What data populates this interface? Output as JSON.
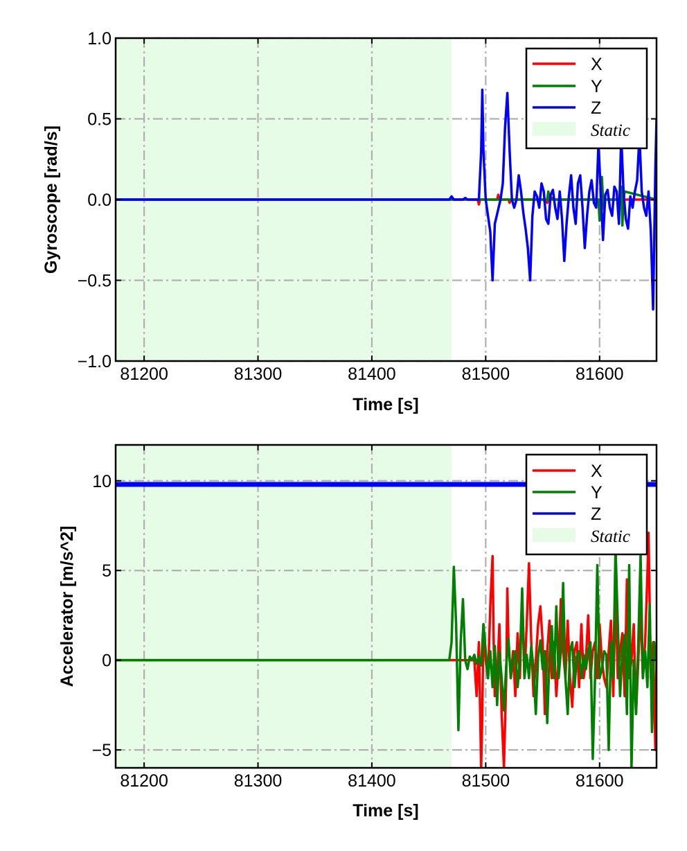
{
  "colors": {
    "x_series": "#ff0000",
    "y_series": "#008000",
    "z_series": "#0000ff",
    "static_region": "#e6fce6",
    "grid": "#b0b0b0",
    "frame": "#000000"
  },
  "chart_data": [
    {
      "type": "line",
      "xlabel": "Time [s]",
      "ylabel": "Gyroscope [rad/s]",
      "xlim": [
        81175,
        81650
      ],
      "ylim": [
        -1.0,
        1.0
      ],
      "xticks": [
        81200,
        81300,
        81400,
        81500,
        81600
      ],
      "xtick_labels": [
        "81200",
        "81300",
        "81400",
        "81500",
        "81600"
      ],
      "yticks": [
        -1.0,
        -0.5,
        0.0,
        0.5,
        1.0
      ],
      "ytick_labels": [
        "−1.0",
        "−0.5",
        "0.0",
        "0.5",
        "1.0"
      ],
      "grid": true,
      "legend_position": "top-right",
      "legend": [
        "X",
        "Y",
        "Z",
        "Static"
      ],
      "static_region": [
        81175,
        81470
      ],
      "series": [
        {
          "name": "X",
          "x": [
            81175,
            81470,
            81493,
            81494,
            81495,
            81500,
            81510,
            81511,
            81512,
            81520,
            81521,
            81522,
            81550,
            81554,
            81555,
            81556,
            81560,
            81650
          ],
          "y": [
            0,
            0,
            0,
            -0.03,
            0,
            0,
            0,
            0.03,
            0,
            0,
            -0.02,
            0,
            0,
            -0.02,
            0,
            0.02,
            0,
            0
          ]
        },
        {
          "name": "Y",
          "x": [
            81175,
            81500,
            81550,
            81554,
            81555,
            81556,
            81558,
            81599,
            81600,
            81601,
            81602,
            81603,
            81604,
            81605,
            81618,
            81619,
            81620,
            81621,
            81622,
            81650
          ],
          "y": [
            0,
            0,
            0,
            0,
            0.05,
            0,
            0,
            0,
            -0.13,
            0,
            0.14,
            0,
            -0.06,
            0,
            0,
            0.08,
            -0.16,
            0,
            0.05,
            0
          ]
        },
        {
          "name": "Z",
          "x": [
            81175,
            81468,
            81470,
            81472,
            81480,
            81482,
            81484,
            81494,
            81496,
            81497,
            81498,
            81500,
            81504,
            81506,
            81508,
            81513,
            81515,
            81517,
            81519,
            81521,
            81523,
            81525,
            81527,
            81529,
            81531,
            81533,
            81535,
            81537,
            81539,
            81541,
            81543,
            81545,
            81547,
            81549,
            81551,
            81553,
            81555,
            81557,
            81559,
            81561,
            81563,
            81565,
            81567,
            81569,
            81571,
            81573,
            81575,
            81577,
            81579,
            81581,
            81583,
            81585,
            81587,
            81589,
            81591,
            81593,
            81595,
            81597,
            81599,
            81601,
            81603,
            81605,
            81607,
            81609,
            81611,
            81613,
            81615,
            81617,
            81619,
            81621,
            81623,
            81625,
            81627,
            81629,
            81631,
            81633,
            81635,
            81637,
            81639,
            81641,
            81643,
            81645,
            81647,
            81649,
            81650
          ],
          "y": [
            0,
            0,
            0.02,
            0,
            0,
            0.01,
            0,
            0,
            0.3,
            0.68,
            0.3,
            0,
            -0.2,
            -0.5,
            -0.15,
            0,
            0.1,
            0.45,
            0.66,
            0.3,
            0,
            -0.05,
            0,
            0.15,
            0.05,
            -0.08,
            -0.18,
            -0.3,
            -0.5,
            -0.1,
            0.05,
            0.02,
            -0.05,
            0.1,
            0.05,
            -0.12,
            -0.15,
            0.03,
            0.06,
            -0.05,
            -0.12,
            0.05,
            -0.12,
            -0.38,
            -0.15,
            0.02,
            0.15,
            -0.05,
            -0.15,
            0.1,
            0.15,
            -0.05,
            -0.3,
            -0.1,
            0.05,
            0.12,
            -0.02,
            -0.05,
            0.35,
            0.05,
            -0.25,
            0.03,
            0.06,
            -0.05,
            -0.1,
            0.08,
            0.05,
            -0.15,
            0.4,
            0.05,
            -0.12,
            -0.18,
            0.02,
            -0.05,
            0.05,
            0.12,
            0.4,
            0.05,
            -0.05,
            -0.1,
            0.05,
            -0.2,
            -0.68,
            0.2,
            0.5
          ]
        }
      ]
    },
    {
      "type": "line",
      "xlabel": "Time [s]",
      "ylabel": "Accelerator [m/s^2]",
      "xlim": [
        81175,
        81650
      ],
      "ylim": [
        -6,
        12
      ],
      "xticks": [
        81200,
        81300,
        81400,
        81500,
        81600
      ],
      "xtick_labels": [
        "81200",
        "81300",
        "81400",
        "81500",
        "81600"
      ],
      "yticks": [
        -5,
        0,
        5,
        10
      ],
      "ytick_labels": [
        "−5",
        "0",
        "5",
        "10"
      ],
      "grid": true,
      "legend_position": "top-right",
      "legend": [
        "X",
        "Y",
        "Z",
        "Static"
      ],
      "static_region": [
        81175,
        81470
      ],
      "series": [
        {
          "name": "X",
          "x": [
            81175,
            81470,
            81490,
            81492,
            81494,
            81496,
            81497,
            81498,
            81500,
            81502,
            81504,
            81506,
            81507,
            81508,
            81510,
            81512,
            81514,
            81516,
            81518,
            81519,
            81520,
            81522,
            81524,
            81526,
            81528,
            81530,
            81532,
            81534,
            81536,
            81538,
            81540,
            81542,
            81544,
            81546,
            81548,
            81550,
            81552,
            81554,
            81556,
            81558,
            81560,
            81562,
            81564,
            81566,
            81568,
            81570,
            81572,
            81574,
            81576,
            81578,
            81580,
            81582,
            81584,
            81586,
            81588,
            81590,
            81592,
            81594,
            81596,
            81598,
            81600,
            81602,
            81604,
            81606,
            81608,
            81610,
            81612,
            81614,
            81616,
            81618,
            81620,
            81622,
            81624,
            81626,
            81628,
            81630,
            81632,
            81634,
            81636,
            81638,
            81640,
            81642,
            81643,
            81645,
            81647,
            81649,
            81650
          ],
          "y": [
            0,
            0,
            0,
            -2,
            1,
            -6,
            -3,
            2,
            0,
            -1,
            3,
            5.8,
            1,
            -2,
            -1,
            2,
            -3,
            -6,
            -1,
            4,
            1,
            -1,
            0.5,
            -2,
            1.5,
            -1,
            3.6,
            -1,
            2,
            5.4,
            1,
            -2,
            0,
            2,
            3,
            1,
            -3,
            0.5,
            2.2,
            -1,
            1,
            -2,
            0,
            3.4,
            0.5,
            -1,
            2.2,
            -1,
            -2.6,
            0.5,
            1,
            -1.5,
            2,
            -1,
            0,
            2.5,
            -1,
            0.5,
            1,
            -1,
            2,
            0,
            -1,
            -1.5,
            0.5,
            2.2,
            -2,
            3.8,
            -1,
            0.5,
            1.5,
            -2,
            4.5,
            -1,
            0,
            2,
            -3,
            0,
            3,
            -1,
            1,
            4.8,
            7.1,
            -1,
            1,
            -5,
            0
          ]
        },
        {
          "name": "Y",
          "x": [
            81175,
            81468,
            81470,
            81472,
            81474,
            81476,
            81478,
            81480,
            81482,
            81484,
            81486,
            81488,
            81490,
            81492,
            81494,
            81496,
            81498,
            81500,
            81502,
            81504,
            81506,
            81508,
            81510,
            81512,
            81514,
            81516,
            81518,
            81520,
            81522,
            81524,
            81526,
            81528,
            81530,
            81532,
            81534,
            81536,
            81538,
            81540,
            81542,
            81544,
            81546,
            81548,
            81550,
            81552,
            81554,
            81556,
            81558,
            81560,
            81562,
            81564,
            81566,
            81568,
            81570,
            81572,
            81574,
            81576,
            81578,
            81580,
            81582,
            81584,
            81586,
            81588,
            81590,
            81592,
            81594,
            81596,
            81598,
            81600,
            81602,
            81604,
            81606,
            81608,
            81610,
            81612,
            81614,
            81616,
            81618,
            81620,
            81622,
            81624,
            81626,
            81628,
            81630,
            81632,
            81634,
            81636,
            81638,
            81640,
            81642,
            81644,
            81646,
            81648,
            81650
          ],
          "y": [
            0,
            0,
            1,
            5.2,
            2,
            -3.9,
            1,
            3.4,
            0,
            -0.5,
            0.2,
            0,
            0.3,
            -0.2,
            0.2,
            -0.3,
            2,
            0.5,
            -1,
            0.5,
            -1.5,
            0.8,
            -2.5,
            0.5,
            -1,
            -2.8,
            -0.3,
            1.2,
            -1,
            0,
            0.5,
            -1.5,
            0,
            4,
            -1,
            0.3,
            -1,
            0.8,
            -0.5,
            -3,
            0.2,
            1.1,
            -0.5,
            0.5,
            -3.5,
            0.2,
            1.9,
            -1,
            3,
            -1,
            0.5,
            4.3,
            -1,
            -3,
            0.5,
            1,
            -1.5,
            0.2,
            0.5,
            -1,
            0.3,
            -0.5,
            0.5,
            1,
            -5.5,
            -1,
            5.3,
            -1,
            -0.5,
            0.5,
            0.3,
            -5,
            1,
            -1,
            6.3,
            2,
            -2,
            0.5,
            1.4,
            -3,
            5.3,
            -6.1,
            0,
            -3,
            1,
            5.9,
            -1,
            0.5,
            -1.5,
            3.1,
            -4,
            1,
            0
          ]
        },
        {
          "name": "Z",
          "x": [
            81175,
            81650
          ],
          "y": [
            9.8,
            9.8
          ]
        }
      ]
    }
  ]
}
